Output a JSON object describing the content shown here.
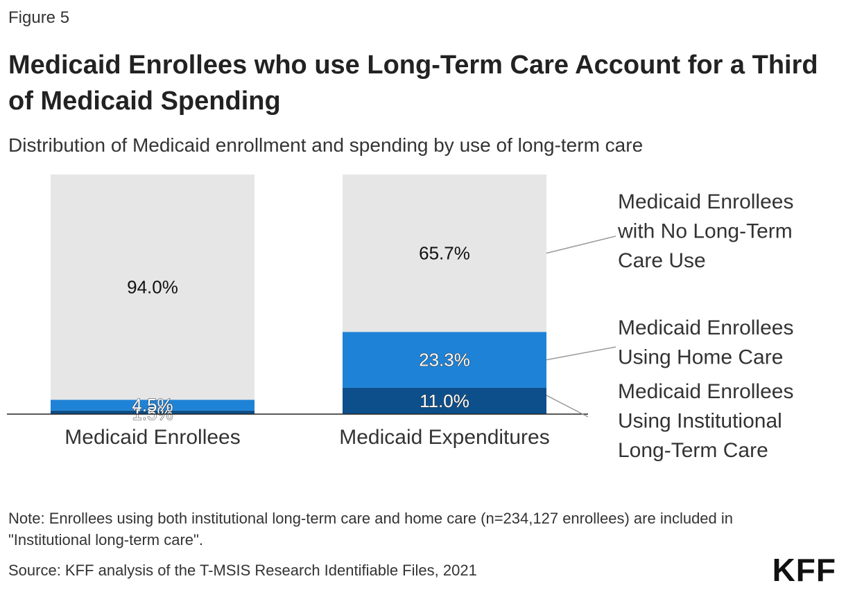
{
  "figure_label": "Figure 5",
  "title": "Medicaid Enrollees who use Long-Term Care Account for a Third of Medicaid Spending",
  "subtitle": "Distribution of Medicaid enrollment and spending by use of long-term care",
  "note": "Note: Enrollees using both institutional long-term care and home care (n=234,127 enrollees) are included in \"Institutional long-term care\".",
  "source": "Source: KFF analysis of the T-MSIS Research Identifiable Files, 2021",
  "logo": "KFF",
  "chart_data": {
    "type": "bar",
    "stacked": true,
    "categories": [
      "Medicaid Enrollees",
      "Medicaid Expenditures"
    ],
    "series": [
      {
        "name": "Medicaid Enrollees Using Institutional Long-Term Care",
        "values": [
          1.5,
          11.0
        ],
        "labels": [
          "1.5%",
          "11.0%"
        ],
        "color": "#0d4f8b"
      },
      {
        "name": "Medicaid Enrollees Using Home Care",
        "values": [
          4.5,
          23.3
        ],
        "labels": [
          "4.5%",
          "23.3%"
        ],
        "color": "#1e82d6"
      },
      {
        "name": "Medicaid Enrollees with No Long-Term Care Use",
        "values": [
          94.0,
          65.7
        ],
        "labels": [
          "94.0%",
          "65.7%"
        ],
        "color": "#e6e6e6"
      }
    ],
    "legend_lines": [
      [
        "Medicaid Enrollees",
        "Using Institutional",
        "Long-Term Care"
      ],
      [
        "Medicaid Enrollees",
        "Using Home Care"
      ],
      [
        "Medicaid Enrollees",
        "with No Long-Term",
        "Care Use"
      ]
    ],
    "legend_position": "right",
    "ylim": [
      0,
      100
    ],
    "xlabel": "",
    "ylabel": "",
    "grid": false
  }
}
